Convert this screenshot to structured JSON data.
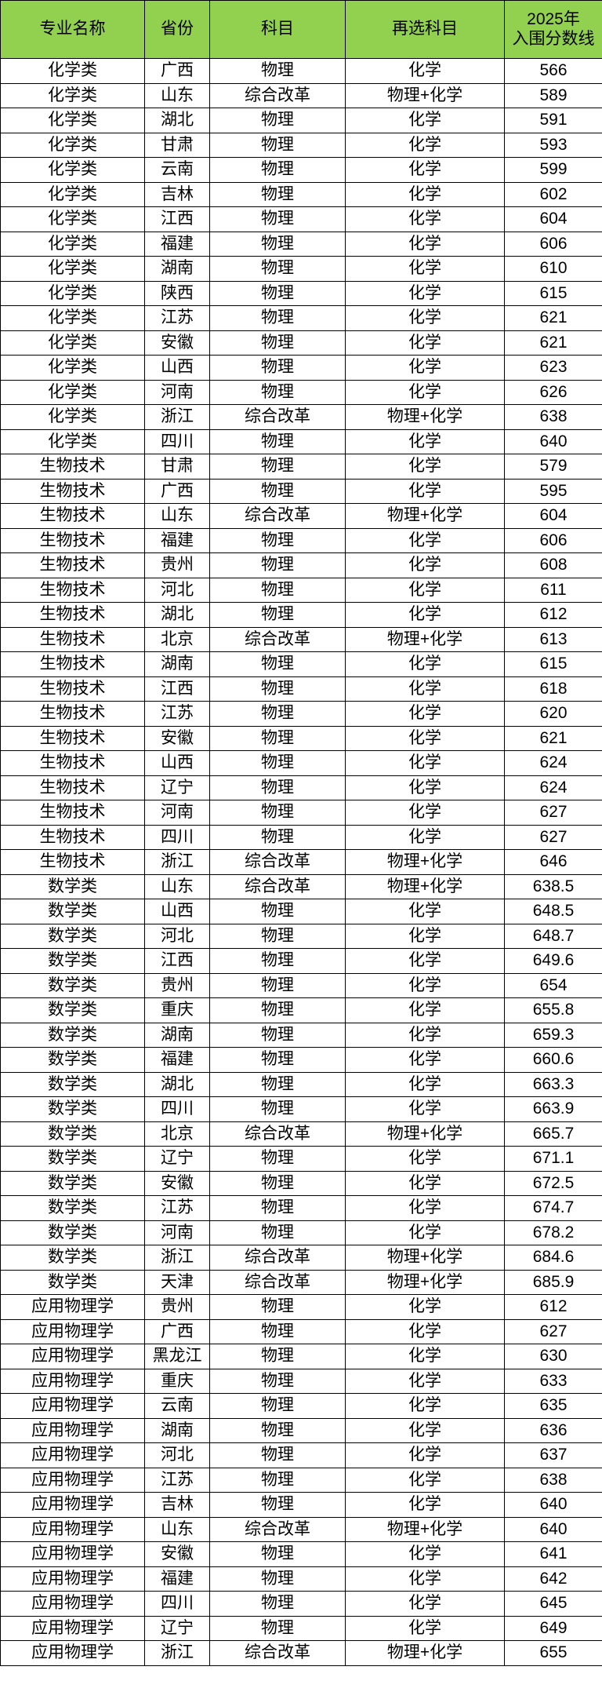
{
  "header_color": "#92D050",
  "headers": [
    "专业名称",
    "省份",
    "科目",
    "再选科目",
    "2025年\n入围分数线"
  ],
  "rows": [
    [
      "化学类",
      "广西",
      "物理",
      "化学",
      "566"
    ],
    [
      "化学类",
      "山东",
      "综合改革",
      "物理+化学",
      "589"
    ],
    [
      "化学类",
      "湖北",
      "物理",
      "化学",
      "591"
    ],
    [
      "化学类",
      "甘肃",
      "物理",
      "化学",
      "593"
    ],
    [
      "化学类",
      "云南",
      "物理",
      "化学",
      "599"
    ],
    [
      "化学类",
      "吉林",
      "物理",
      "化学",
      "602"
    ],
    [
      "化学类",
      "江西",
      "物理",
      "化学",
      "604"
    ],
    [
      "化学类",
      "福建",
      "物理",
      "化学",
      "606"
    ],
    [
      "化学类",
      "湖南",
      "物理",
      "化学",
      "610"
    ],
    [
      "化学类",
      "陕西",
      "物理",
      "化学",
      "615"
    ],
    [
      "化学类",
      "江苏",
      "物理",
      "化学",
      "621"
    ],
    [
      "化学类",
      "安徽",
      "物理",
      "化学",
      "621"
    ],
    [
      "化学类",
      "山西",
      "物理",
      "化学",
      "623"
    ],
    [
      "化学类",
      "河南",
      "物理",
      "化学",
      "626"
    ],
    [
      "化学类",
      "浙江",
      "综合改革",
      "物理+化学",
      "638"
    ],
    [
      "化学类",
      "四川",
      "物理",
      "化学",
      "640"
    ],
    [
      "生物技术",
      "甘肃",
      "物理",
      "化学",
      "579"
    ],
    [
      "生物技术",
      "广西",
      "物理",
      "化学",
      "595"
    ],
    [
      "生物技术",
      "山东",
      "综合改革",
      "物理+化学",
      "604"
    ],
    [
      "生物技术",
      "福建",
      "物理",
      "化学",
      "606"
    ],
    [
      "生物技术",
      "贵州",
      "物理",
      "化学",
      "608"
    ],
    [
      "生物技术",
      "河北",
      "物理",
      "化学",
      "611"
    ],
    [
      "生物技术",
      "湖北",
      "物理",
      "化学",
      "612"
    ],
    [
      "生物技术",
      "北京",
      "综合改革",
      "物理+化学",
      "613"
    ],
    [
      "生物技术",
      "湖南",
      "物理",
      "化学",
      "615"
    ],
    [
      "生物技术",
      "江西",
      "物理",
      "化学",
      "618"
    ],
    [
      "生物技术",
      "江苏",
      "物理",
      "化学",
      "620"
    ],
    [
      "生物技术",
      "安徽",
      "物理",
      "化学",
      "621"
    ],
    [
      "生物技术",
      "山西",
      "物理",
      "化学",
      "624"
    ],
    [
      "生物技术",
      "辽宁",
      "物理",
      "化学",
      "624"
    ],
    [
      "生物技术",
      "河南",
      "物理",
      "化学",
      "627"
    ],
    [
      "生物技术",
      "四川",
      "物理",
      "化学",
      "627"
    ],
    [
      "生物技术",
      "浙江",
      "综合改革",
      "物理+化学",
      "646"
    ],
    [
      "数学类",
      "山东",
      "综合改革",
      "物理+化学",
      "638.5"
    ],
    [
      "数学类",
      "山西",
      "物理",
      "化学",
      "648.5"
    ],
    [
      "数学类",
      "河北",
      "物理",
      "化学",
      "648.7"
    ],
    [
      "数学类",
      "江西",
      "物理",
      "化学",
      "649.6"
    ],
    [
      "数学类",
      "贵州",
      "物理",
      "化学",
      "654"
    ],
    [
      "数学类",
      "重庆",
      "物理",
      "化学",
      "655.8"
    ],
    [
      "数学类",
      "湖南",
      "物理",
      "化学",
      "659.3"
    ],
    [
      "数学类",
      "福建",
      "物理",
      "化学",
      "660.6"
    ],
    [
      "数学类",
      "湖北",
      "物理",
      "化学",
      "663.3"
    ],
    [
      "数学类",
      "四川",
      "物理",
      "化学",
      "663.9"
    ],
    [
      "数学类",
      "北京",
      "综合改革",
      "物理+化学",
      "665.7"
    ],
    [
      "数学类",
      "辽宁",
      "物理",
      "化学",
      "671.1"
    ],
    [
      "数学类",
      "安徽",
      "物理",
      "化学",
      "672.5"
    ],
    [
      "数学类",
      "江苏",
      "物理",
      "化学",
      "674.7"
    ],
    [
      "数学类",
      "河南",
      "物理",
      "化学",
      "678.2"
    ],
    [
      "数学类",
      "浙江",
      "综合改革",
      "物理+化学",
      "684.6"
    ],
    [
      "数学类",
      "天津",
      "综合改革",
      "物理+化学",
      "685.9"
    ],
    [
      "应用物理学",
      "贵州",
      "物理",
      "化学",
      "612"
    ],
    [
      "应用物理学",
      "广西",
      "物理",
      "化学",
      "627"
    ],
    [
      "应用物理学",
      "黑龙江",
      "物理",
      "化学",
      "630"
    ],
    [
      "应用物理学",
      "重庆",
      "物理",
      "化学",
      "633"
    ],
    [
      "应用物理学",
      "云南",
      "物理",
      "化学",
      "635"
    ],
    [
      "应用物理学",
      "湖南",
      "物理",
      "化学",
      "636"
    ],
    [
      "应用物理学",
      "河北",
      "物理",
      "化学",
      "637"
    ],
    [
      "应用物理学",
      "江苏",
      "物理",
      "化学",
      "638"
    ],
    [
      "应用物理学",
      "吉林",
      "物理",
      "化学",
      "640"
    ],
    [
      "应用物理学",
      "山东",
      "综合改革",
      "物理+化学",
      "640"
    ],
    [
      "应用物理学",
      "安徽",
      "物理",
      "化学",
      "641"
    ],
    [
      "应用物理学",
      "福建",
      "物理",
      "化学",
      "642"
    ],
    [
      "应用物理学",
      "四川",
      "物理",
      "化学",
      "645"
    ],
    [
      "应用物理学",
      "辽宁",
      "物理",
      "化学",
      "649"
    ],
    [
      "应用物理学",
      "浙江",
      "综合改革",
      "物理+化学",
      "655"
    ]
  ]
}
